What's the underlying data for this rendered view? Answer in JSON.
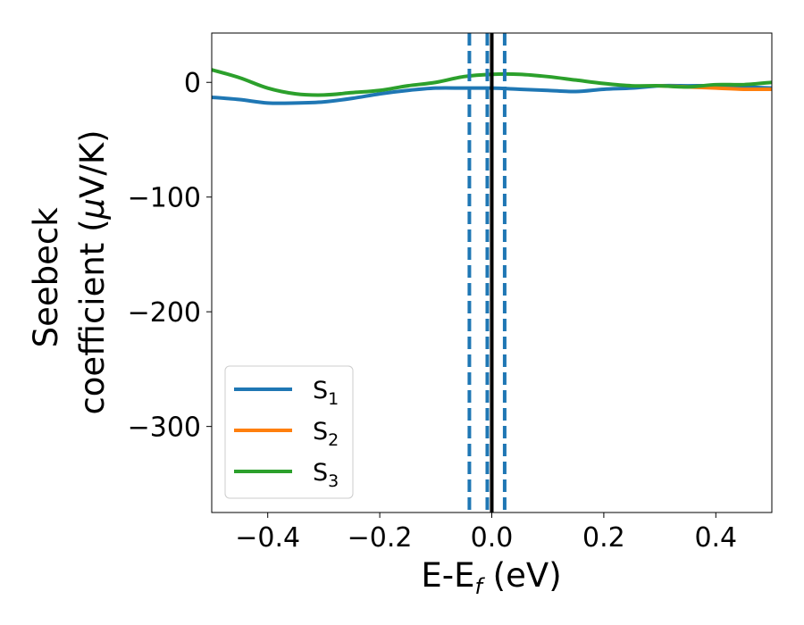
{
  "chart_data": {
    "type": "line",
    "xlabel": {
      "main": "E-E",
      "sub": "f",
      "unit": " (eV)"
    },
    "ylabel": {
      "line1": "Seebeck",
      "line2_pre": "coefficient  (",
      "mu": "μ",
      "line2_post": "V/K)"
    },
    "xlim": [
      -0.5,
      0.5
    ],
    "ylim": [
      -375,
      43
    ],
    "xticks": [
      -0.4,
      -0.2,
      0.0,
      0.2,
      0.4
    ],
    "xtick_labels": [
      "−0.4",
      "−0.2",
      "0.0",
      "0.2",
      "0.4"
    ],
    "yticks": [
      0,
      -100,
      -200,
      -300
    ],
    "ytick_labels": [
      "0",
      "−100",
      "−200",
      "−300"
    ],
    "vlines": [
      {
        "x": -0.04,
        "style": "dashed",
        "color": "#1f77b4"
      },
      {
        "x": -0.008,
        "style": "dashed",
        "color": "#1f77b4"
      },
      {
        "x": 0.0,
        "style": "solid",
        "color": "#000000"
      },
      {
        "x": 0.023,
        "style": "dashed",
        "color": "#1f77b4"
      }
    ],
    "grid": false,
    "legend_position": "lower-left",
    "series": [
      {
        "name": {
          "base": "S",
          "sub": "1"
        },
        "color": "#1f77b4",
        "x": [
          -0.5,
          -0.45,
          -0.4,
          -0.35,
          -0.3,
          -0.25,
          -0.2,
          -0.15,
          -0.1,
          -0.05,
          0.0,
          0.05,
          0.1,
          0.15,
          0.2,
          0.25,
          0.3,
          0.35,
          0.4,
          0.45,
          0.5
        ],
        "y": [
          -13,
          -15,
          -18,
          -18,
          -17,
          -14,
          -10,
          -7,
          -5,
          -5,
          -5,
          -6,
          -7,
          -8,
          -6,
          -5,
          -3,
          -3,
          -3,
          -4,
          -5
        ]
      },
      {
        "name": {
          "base": "S",
          "sub": "2"
        },
        "color": "#ff7f0e",
        "x": [
          0.3,
          0.35,
          0.4,
          0.45,
          0.5
        ],
        "y": [
          -3,
          -4,
          -5,
          -6,
          -6
        ]
      },
      {
        "name": {
          "base": "S",
          "sub": "3"
        },
        "color": "#2ca02c",
        "x": [
          -0.5,
          -0.45,
          -0.4,
          -0.35,
          -0.3,
          -0.25,
          -0.2,
          -0.15,
          -0.1,
          -0.05,
          0.0,
          0.05,
          0.1,
          0.15,
          0.2,
          0.25,
          0.3,
          0.35,
          0.4,
          0.45,
          0.5
        ],
        "y": [
          11,
          4,
          -5,
          -10,
          -11,
          -9,
          -7,
          -3,
          0,
          5,
          7,
          7,
          5,
          2,
          -1,
          -3,
          -3,
          -4,
          -2,
          -2,
          0
        ]
      }
    ]
  }
}
